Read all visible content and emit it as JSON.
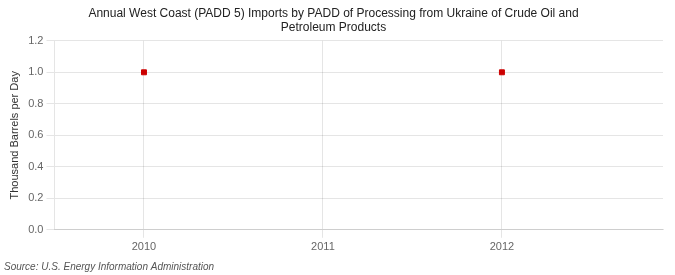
{
  "chart_data": {
    "type": "scatter",
    "title": "Annual West Coast (PADD 5) Imports by PADD of Processing from Ukraine of Crude Oil and\nPetroleum Products",
    "ylabel": "Thousand Barrels per Day",
    "annotations": [
      "Source: U.S. Energy Information Administration"
    ],
    "x": [
      2010,
      2012
    ],
    "values": [
      1.0,
      1.0
    ],
    "color": "#cc0000",
    "marker": "square",
    "xlim": [
      2009.5,
      2012.9
    ],
    "ylim": [
      0.0,
      1.2
    ],
    "xticks": [
      2010,
      2011,
      2012
    ],
    "yticks": [
      {
        "value": 0.0,
        "label": "0.0"
      },
      0.2,
      0.4,
      0.6,
      0.8,
      {
        "value": 1.0,
        "label": "1.0"
      },
      1.2
    ],
    "grid": true
  }
}
